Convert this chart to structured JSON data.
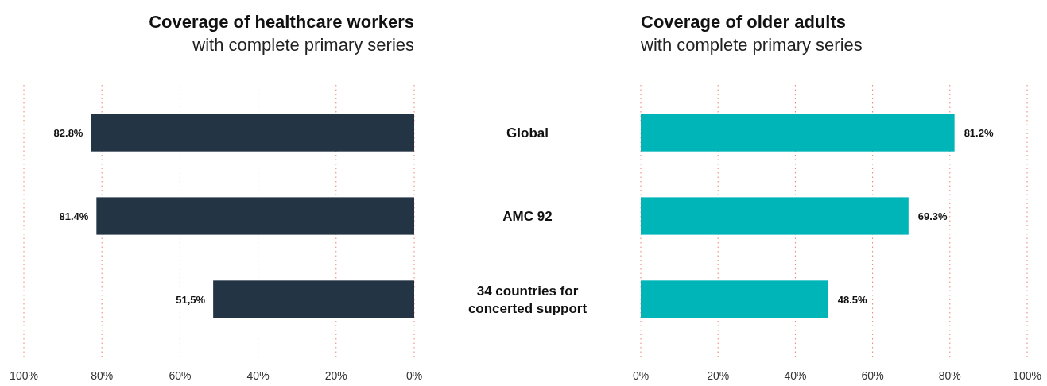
{
  "chart_data": [
    {
      "type": "bar",
      "orientation": "horizontal",
      "title": "Coverage of healthcare workers",
      "subtitle": "with complete primary series",
      "categories": [
        "Global",
        "AMC 92",
        "34 countries for concerted support"
      ],
      "values": [
        82.8,
        81.4,
        51.5
      ],
      "value_labels": [
        "82.8%",
        "81.4%",
        "51,5%"
      ],
      "color": "#233545",
      "xlim": [
        100,
        0
      ],
      "xticks": [
        {
          "value": 100,
          "label": "100%"
        },
        {
          "value": 80,
          "label": "80%"
        },
        {
          "value": 60,
          "label": "60%"
        },
        {
          "value": 40,
          "label": "40%"
        },
        {
          "value": 20,
          "label": "20%"
        },
        {
          "value": 0,
          "label": "0%"
        }
      ],
      "grid": "x"
    },
    {
      "type": "bar",
      "orientation": "horizontal",
      "title": "Coverage of older adults",
      "subtitle": "with complete primary series",
      "categories": [
        null,
        null,
        null
      ],
      "values": [
        81.2,
        69.3,
        48.5
      ],
      "value_labels": [
        "81.2%",
        "69.3%",
        "48.5%"
      ],
      "color": "#00b5b8",
      "xlim": [
        0,
        100
      ],
      "xticks": [
        {
          "value": 0,
          "label": "0%"
        },
        {
          "value": 20,
          "label": "20%"
        },
        {
          "value": 40,
          "label": "40%"
        },
        {
          "value": 60,
          "label": "60%"
        },
        {
          "value": 80,
          "label": "80%"
        },
        {
          "value": 100,
          "label": "100%"
        }
      ],
      "grid": "x",
      "tick_labels": "x"
    }
  ]
}
